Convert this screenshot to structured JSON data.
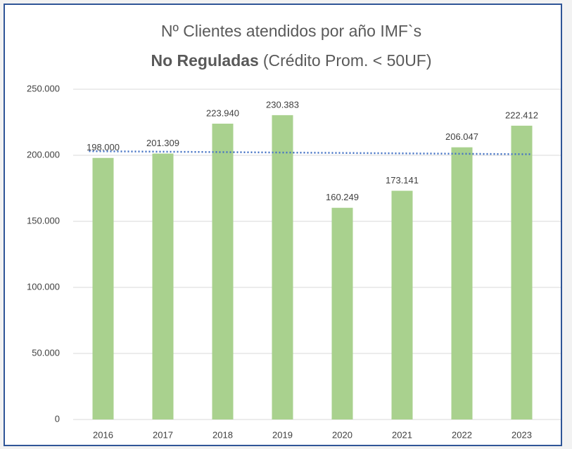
{
  "chart_data": {
    "type": "bar",
    "title": "Nº Clientes atendidos por año IMF`s",
    "subtitle_bold": "No Reguladas",
    "subtitle": "(Crédito Prom. < 50UF)",
    "categories": [
      "2016",
      "2017",
      "2018",
      "2019",
      "2020",
      "2021",
      "2022",
      "2023"
    ],
    "values": [
      198000,
      201309,
      223940,
      230383,
      160249,
      173141,
      206047,
      222412
    ],
    "value_labels": [
      "198.000",
      "201.309",
      "223.940",
      "230.383",
      "160.249",
      "173.141",
      "206.047",
      "222.412"
    ],
    "color": "#a9d18e",
    "ylim": [
      0,
      250000
    ],
    "yticks": [
      {
        "value": 0,
        "label": "0"
      },
      {
        "value": 50000,
        "label": "50.000"
      },
      {
        "value": 100000,
        "label": "100.000"
      },
      {
        "value": 150000,
        "label": "150.000"
      },
      {
        "value": 200000,
        "label": "200.000"
      },
      {
        "value": 250000,
        "label": "250.000"
      }
    ],
    "grid": true,
    "trendline": {
      "values": [
        203100,
        200770
      ],
      "color": "#4472c4"
    }
  }
}
